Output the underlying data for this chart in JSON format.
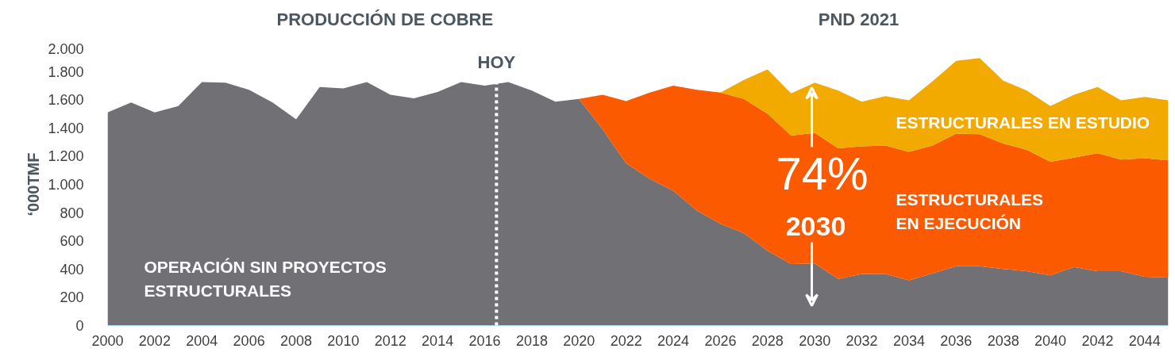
{
  "chart_data": {
    "type": "area",
    "stacked": true,
    "title": "PRODUCCIÓN DE COBRE",
    "subtitle": "PND 2021",
    "ylabel": "‘000TMF",
    "x": [
      2000,
      2001,
      2002,
      2003,
      2004,
      2005,
      2006,
      2007,
      2008,
      2009,
      2010,
      2011,
      2012,
      2013,
      2014,
      2015,
      2016,
      2017,
      2018,
      2019,
      2020,
      2021,
      2022,
      2023,
      2024,
      2025,
      2026,
      2027,
      2028,
      2029,
      2030,
      2031,
      2032,
      2033,
      2034,
      2035,
      2036,
      2037,
      2038,
      2039,
      2040,
      2041,
      2042,
      2043,
      2044,
      2045
    ],
    "series": [
      {
        "name": "OPERACIÓN SIN PROYECTOS ESTRUCTURALES",
        "color": "#717074",
        "values": [
          1510,
          1580,
          1510,
          1555,
          1725,
          1720,
          1670,
          1580,
          1460,
          1690,
          1680,
          1725,
          1635,
          1610,
          1655,
          1725,
          1700,
          1725,
          1665,
          1585,
          1605,
          1390,
          1150,
          1040,
          955,
          815,
          720,
          655,
          530,
          435,
          440,
          330,
          365,
          365,
          320,
          370,
          420,
          420,
          400,
          385,
          355,
          415,
          385,
          385,
          345,
          340
        ]
      },
      {
        "name": "ESTRUCTURALES EN EJECUCIÓN",
        "color": "#fb5a00",
        "values": [
          null,
          null,
          null,
          null,
          null,
          null,
          null,
          null,
          null,
          null,
          null,
          null,
          null,
          null,
          null,
          null,
          null,
          null,
          null,
          null,
          0,
          245,
          440,
          610,
          745,
          855,
          930,
          950,
          970,
          910,
          925,
          925,
          905,
          910,
          910,
          905,
          940,
          935,
          890,
          860,
          805,
          775,
          835,
          790,
          840,
          830
        ]
      },
      {
        "name": "ESTRUCTURALES EN ESTUDIO",
        "color": "#f2a900",
        "values": [
          null,
          null,
          null,
          null,
          null,
          null,
          null,
          null,
          null,
          null,
          null,
          null,
          null,
          null,
          null,
          null,
          null,
          null,
          null,
          null,
          null,
          null,
          null,
          null,
          null,
          null,
          0,
          135,
          315,
          300,
          355,
          410,
          315,
          350,
          365,
          455,
          515,
          540,
          445,
          420,
          395,
          445,
          470,
          420,
          435,
          425
        ]
      }
    ],
    "xlim": [
      2000,
      2045
    ],
    "ylim": [
      0,
      2000
    ],
    "xticks": [
      2000,
      2002,
      2004,
      2006,
      2008,
      2010,
      2012,
      2014,
      2016,
      2018,
      2020,
      2022,
      2024,
      2026,
      2028,
      2030,
      2032,
      2034,
      2036,
      2038,
      2040,
      2042,
      2044
    ],
    "yticks": [
      0,
      200,
      400,
      600,
      800,
      {
        "value": 1000,
        "label": "1.000"
      },
      {
        "value": 1200,
        "label": "1.200"
      },
      {
        "value": 1400,
        "label": "1.400"
      },
      {
        "value": 1600,
        "label": "1.600"
      },
      {
        "value": 1800,
        "label": "1.800"
      },
      {
        "value": 2000,
        "label": "2.000"
      }
    ],
    "ref_lines": [
      {
        "axis": "x",
        "value": 2016.5,
        "label": "HOY",
        "color": "#ffffff",
        "line_style": "dotted"
      }
    ],
    "annotations": [
      "74%",
      "2030"
    ],
    "grid": false
  }
}
